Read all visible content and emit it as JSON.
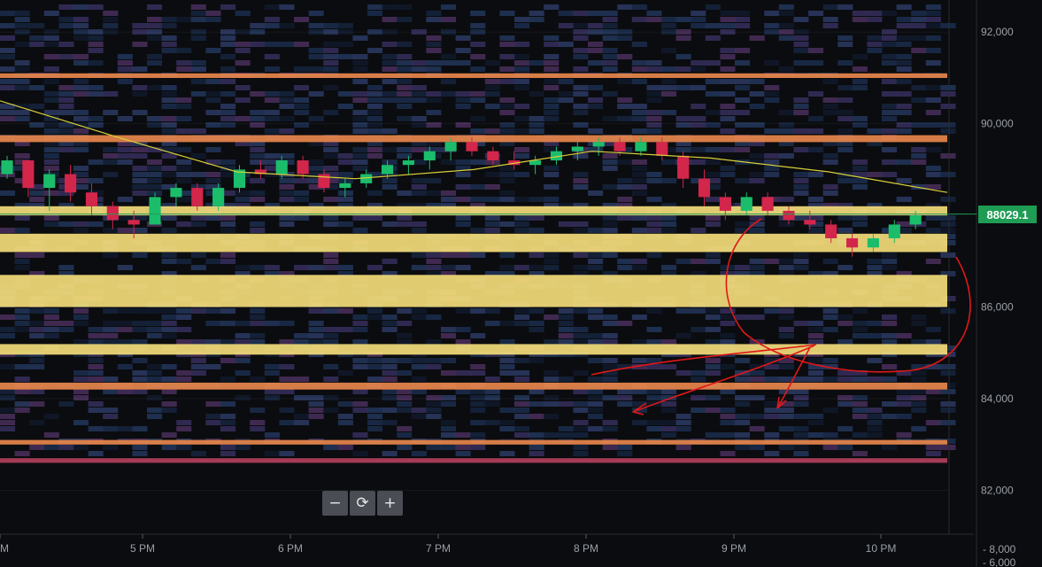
{
  "chart_data": {
    "type": "heatmap",
    "title": "",
    "xlabel": "",
    "ylabel": "",
    "x_ticks": [
      "5 PM",
      "6 PM",
      "7 PM",
      "8 PM",
      "9 PM",
      "10 PM"
    ],
    "x_tick_partial_left": "PM",
    "y_ticks": [
      92000,
      90000,
      88000,
      86000,
      84000,
      82000
    ],
    "y_tick_labels": [
      "92,000",
      "90,000",
      "88,000",
      "86,000",
      "84,000",
      "82,000"
    ],
    "ylim": [
      81100,
      92700
    ],
    "volume_axis_labels": [
      "8,000",
      "6,000"
    ],
    "current_price": 88029.1,
    "current_price_label": "88029.1",
    "heat_bands": [
      {
        "from": 84960,
        "to": 85190,
        "intensity": "high"
      },
      {
        "from": 86000,
        "to": 86700,
        "intensity": "high"
      },
      {
        "from": 87200,
        "to": 87600,
        "intensity": "high"
      },
      {
        "from": 88000,
        "to": 88200,
        "intensity": "high"
      },
      {
        "from": 89600,
        "to": 89750,
        "intensity": "medium"
      },
      {
        "from": 84200,
        "to": 84350,
        "intensity": "medium"
      },
      {
        "from": 83000,
        "to": 83100,
        "intensity": "medium"
      },
      {
        "from": 91000,
        "to": 91100,
        "intensity": "medium"
      },
      {
        "from": 82600,
        "to": 82700,
        "intensity": "low"
      }
    ],
    "ma_line": {
      "color": "#d8cf3a",
      "points": [
        [
          0,
          90500
        ],
        [
          1,
          89700
        ],
        [
          2,
          88950
        ],
        [
          3,
          88800
        ],
        [
          4,
          89000
        ],
        [
          5,
          89400
        ],
        [
          6,
          89250
        ],
        [
          7,
          88950
        ],
        [
          8,
          88500
        ]
      ]
    },
    "candles": [
      [
        0,
        88900,
        89300,
        88800,
        89200
      ],
      [
        1,
        89200,
        89100,
        88400,
        88600
      ],
      [
        2,
        88600,
        89000,
        88100,
        88900
      ],
      [
        3,
        88900,
        89100,
        88300,
        88500
      ],
      [
        4,
        88500,
        88700,
        88000,
        88200
      ],
      [
        5,
        88200,
        88300,
        87700,
        87900
      ],
      [
        6,
        87900,
        88100,
        87500,
        87800
      ],
      [
        7,
        87800,
        88500,
        87800,
        88400
      ],
      [
        8,
        88400,
        88700,
        88200,
        88600
      ],
      [
        9,
        88600,
        88700,
        88100,
        88200
      ],
      [
        10,
        88200,
        88700,
        88100,
        88600
      ],
      [
        11,
        88600,
        89100,
        88500,
        89000
      ],
      [
        12,
        89000,
        89200,
        88800,
        88900
      ],
      [
        13,
        88900,
        89300,
        88800,
        89200
      ],
      [
        14,
        89200,
        89300,
        88800,
        88900
      ],
      [
        15,
        88900,
        89000,
        88500,
        88600
      ],
      [
        16,
        88600,
        88800,
        88400,
        88700
      ],
      [
        17,
        88700,
        89000,
        88600,
        88900
      ],
      [
        18,
        88900,
        89200,
        88800,
        89100
      ],
      [
        19,
        89100,
        89300,
        88900,
        89200
      ],
      [
        20,
        89200,
        89500,
        89000,
        89400
      ],
      [
        21,
        89400,
        89700,
        89200,
        89600
      ],
      [
        22,
        89600,
        89700,
        89300,
        89400
      ],
      [
        23,
        89400,
        89500,
        89100,
        89200
      ],
      [
        24,
        89200,
        89400,
        89000,
        89100
      ],
      [
        25,
        89100,
        89300,
        88900,
        89200
      ],
      [
        26,
        89200,
        89500,
        89100,
        89400
      ],
      [
        27,
        89400,
        89600,
        89200,
        89500
      ],
      [
        28,
        89500,
        89700,
        89300,
        89600
      ],
      [
        29,
        89600,
        89700,
        89300,
        89400
      ],
      [
        30,
        89400,
        89700,
        89300,
        89600
      ],
      [
        31,
        89600,
        89700,
        89200,
        89300
      ],
      [
        32,
        89300,
        89400,
        88600,
        88800
      ],
      [
        33,
        88800,
        89000,
        88200,
        88400
      ],
      [
        34,
        88400,
        88500,
        87900,
        88100
      ],
      [
        35,
        88100,
        88500,
        88000,
        88400
      ],
      [
        36,
        88400,
        88500,
        88000,
        88100
      ],
      [
        37,
        88100,
        88200,
        87800,
        87900
      ],
      [
        38,
        87900,
        88100,
        87700,
        87800
      ],
      [
        39,
        87800,
        87900,
        87400,
        87500
      ],
      [
        40,
        87500,
        87600,
        87100,
        87300
      ],
      [
        41,
        87300,
        87600,
        87200,
        87500
      ],
      [
        42,
        87500,
        87900,
        87400,
        87800
      ],
      [
        43,
        87800,
        88100,
        87700,
        88000
      ]
    ]
  }
}
